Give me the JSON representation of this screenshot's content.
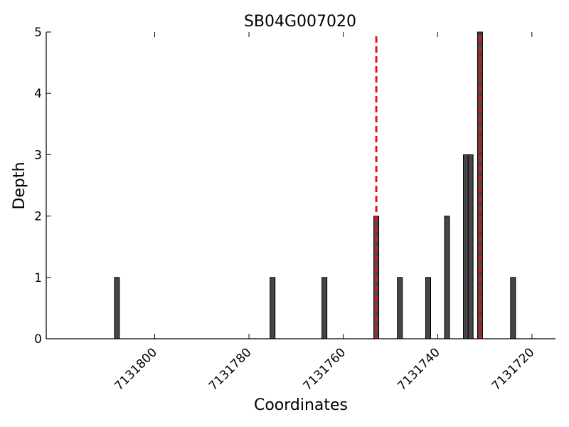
{
  "chart_data": {
    "type": "bar",
    "title": "SB04G007020",
    "xlabel": "Coordinates",
    "ylabel": "Depth",
    "x_axis_inverted": true,
    "xlim": [
      7131823,
      7131715
    ],
    "ylim": [
      0,
      5
    ],
    "grid": false,
    "bar_color": "#454545",
    "marker_color": "#e8131a",
    "x_ticks": [
      {
        "value": 7131800,
        "label": "7131800"
      },
      {
        "value": 7131780,
        "label": "7131780"
      },
      {
        "value": 7131760,
        "label": "7131760"
      },
      {
        "value": 7131740,
        "label": "7131740"
      },
      {
        "value": 7131720,
        "label": "7131720"
      }
    ],
    "y_ticks": [
      {
        "value": 0,
        "label": "0"
      },
      {
        "value": 1,
        "label": "1"
      },
      {
        "value": 2,
        "label": "2"
      },
      {
        "value": 3,
        "label": "3"
      },
      {
        "value": 4,
        "label": "4"
      },
      {
        "value": 5,
        "label": "5"
      }
    ],
    "bars": [
      {
        "x": 7131808,
        "depth": 1
      },
      {
        "x": 7131775,
        "depth": 1
      },
      {
        "x": 7131764,
        "depth": 1
      },
      {
        "x": 7131753,
        "depth": 2
      },
      {
        "x": 7131748,
        "depth": 1
      },
      {
        "x": 7131742,
        "depth": 1
      },
      {
        "x": 7131738,
        "depth": 2
      },
      {
        "x": 7131734,
        "depth": 3
      },
      {
        "x": 7131733,
        "depth": 3
      },
      {
        "x": 7131731,
        "depth": 5
      },
      {
        "x": 7131724,
        "depth": 1
      }
    ],
    "markers": [
      7131753,
      7131731
    ]
  }
}
